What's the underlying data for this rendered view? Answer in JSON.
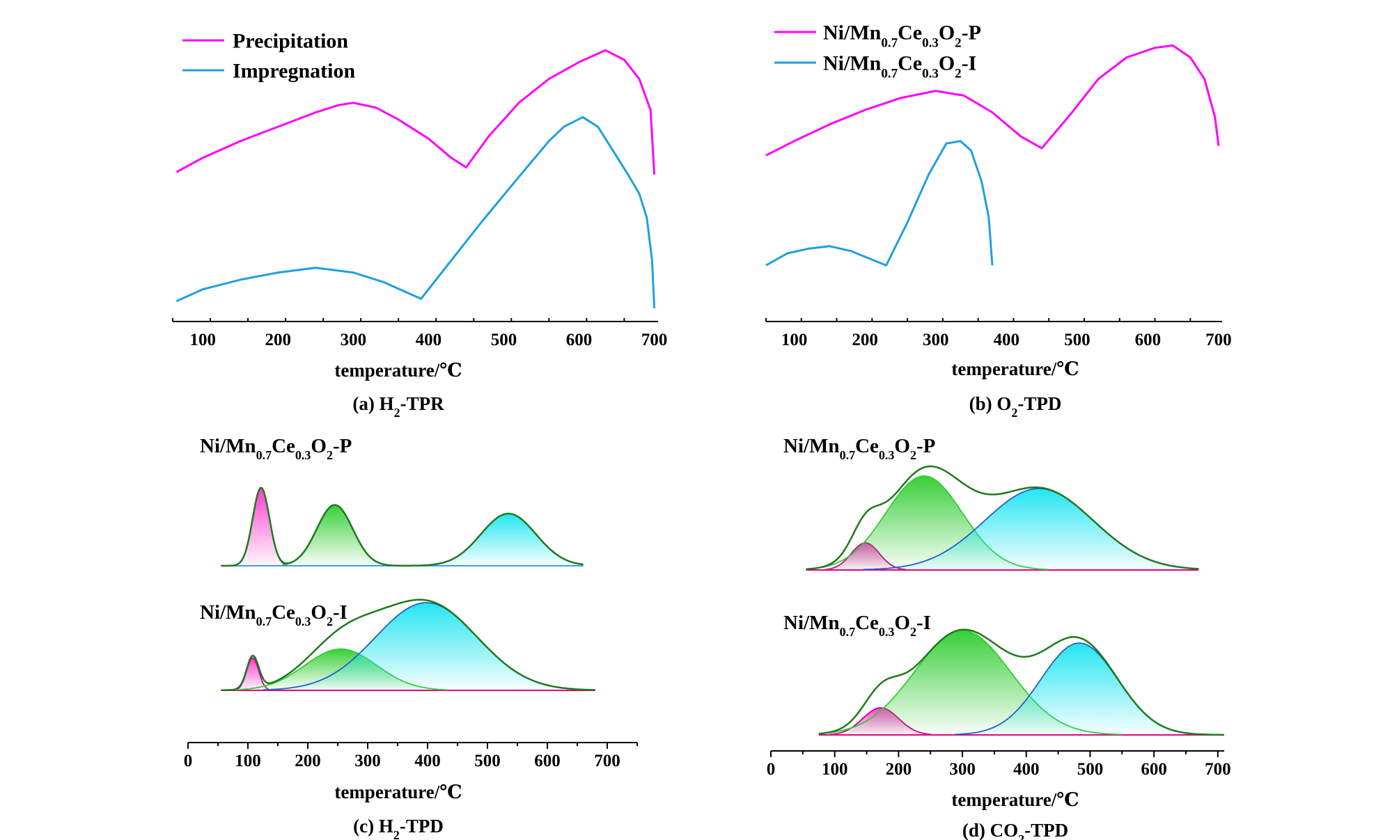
{
  "colors": {
    "magenta": "#ff00ff",
    "blue": "#1f9fe0",
    "envelope": "#1d7a1d",
    "green_peak": "#2ecc2e",
    "cyan_peak": "#18e4f2",
    "pink_peak": "#ff33cc",
    "baseline_pink": "#e6007e",
    "baseline_blue": "#3aa0e8",
    "axis": "#000000"
  },
  "chart_data": [
    {
      "id": "a",
      "type": "line",
      "caption": {
        "pre": "(a) H",
        "sub": "2",
        "post": "-TPR"
      },
      "xlabel": "temperature/℃",
      "xlim": [
        60,
        705
      ],
      "xticks": [
        100,
        200,
        300,
        400,
        500,
        600,
        700
      ],
      "legend_placement": "top-left",
      "legend": [
        {
          "label": "Precipitation",
          "color": "#ff00ff"
        },
        {
          "label": "Impregnation",
          "color": "#1f9fe0"
        }
      ],
      "series": [
        {
          "color": "#ff00ff",
          "x": [
            65,
            100,
            150,
            200,
            250,
            280,
            300,
            330,
            360,
            400,
            430,
            450,
            480,
            520,
            560,
            600,
            635,
            660,
            680,
            695,
            700
          ],
          "y": [
            0.59,
            0.65,
            0.72,
            0.78,
            0.84,
            0.87,
            0.88,
            0.86,
            0.81,
            0.73,
            0.65,
            0.61,
            0.74,
            0.88,
            0.98,
            1.05,
            1.1,
            1.06,
            0.98,
            0.85,
            0.58
          ]
        },
        {
          "color": "#1f9fe0",
          "x": [
            65,
            100,
            150,
            200,
            250,
            300,
            340,
            390,
            430,
            470,
            520,
            560,
            580,
            605,
            625,
            645,
            665,
            680,
            690,
            697,
            700
          ],
          "y": [
            0.05,
            0.1,
            0.14,
            0.17,
            0.19,
            0.17,
            0.13,
            0.06,
            0.22,
            0.38,
            0.57,
            0.72,
            0.78,
            0.82,
            0.78,
            0.68,
            0.58,
            0.5,
            0.4,
            0.22,
            0.02
          ]
        }
      ]
    },
    {
      "id": "b",
      "type": "line",
      "caption": {
        "pre": "(b) O",
        "sub": "2",
        "post": "-TPD"
      },
      "xlabel": "temperature/℃",
      "xlim": [
        60,
        705
      ],
      "xticks": [
        100,
        200,
        300,
        400,
        500,
        600,
        700
      ],
      "legend_placement": "top-left",
      "legend": [
        {
          "label": {
            "pre": "Ni/Mn",
            "s1": "0.7",
            "mid": "Ce",
            "s2": "0.3",
            "o": "O",
            "s3": "2",
            "post": "-P"
          },
          "color": "#ff00ff"
        },
        {
          "label": {
            "pre": "Ni/Mn",
            "s1": "0.7",
            "mid": "Ce",
            "s2": "0.3",
            "o": "O",
            "s3": "2",
            "post": "-I"
          },
          "color": "#1f9fe0"
        }
      ],
      "series": [
        {
          "color": "#ff00ff",
          "x": [
            60,
            100,
            150,
            200,
            250,
            300,
            340,
            380,
            420,
            450,
            490,
            530,
            570,
            610,
            635,
            660,
            680,
            695,
            700
          ],
          "y": [
            0.66,
            0.72,
            0.79,
            0.85,
            0.9,
            0.93,
            0.91,
            0.84,
            0.74,
            0.69,
            0.83,
            0.98,
            1.07,
            1.11,
            1.12,
            1.07,
            0.98,
            0.82,
            0.7
          ]
        },
        {
          "color": "#1f9fe0",
          "x": [
            60,
            90,
            120,
            150,
            180,
            205,
            230,
            260,
            290,
            315,
            335,
            350,
            365,
            375,
            380
          ],
          "y": [
            0.2,
            0.25,
            0.27,
            0.28,
            0.26,
            0.23,
            0.2,
            0.38,
            0.58,
            0.71,
            0.72,
            0.68,
            0.55,
            0.4,
            0.2
          ]
        }
      ]
    },
    {
      "id": "c",
      "type": "area",
      "caption": {
        "pre": "(c) H",
        "sub": "2",
        "post": "-TPD"
      },
      "xlabel": "temperature/℃",
      "xlim": [
        0,
        750
      ],
      "xticks": [
        0,
        100,
        200,
        300,
        400,
        500,
        600,
        700
      ],
      "panels": [
        {
          "sample": {
            "pre": "Ni/Mn",
            "s1": "0.7",
            "mid": "Ce",
            "s2": "0.3",
            "o": "O",
            "s3": "2",
            "post": "-P"
          },
          "range": [
            55,
            660
          ],
          "baseline_color": "#3aa0e8",
          "peaks": [
            {
              "center": 122,
              "amp": 0.45,
              "sigma": 14,
              "color": "#ff33cc"
            },
            {
              "center": 245,
              "amp": 0.35,
              "sigma": 30,
              "color": "#2ecc2e"
            },
            {
              "center": 535,
              "amp": 0.3,
              "sigma": 46,
              "color": "#18e4f2"
            }
          ]
        },
        {
          "sample": {
            "pre": "Ni/Mn",
            "s1": "0.7",
            "mid": "Ce",
            "s2": "0.3",
            "o": "O",
            "s3": "2",
            "post": "-I"
          },
          "range": [
            55,
            680
          ],
          "baseline_color": "#e6007e",
          "peaks": [
            {
              "center": 108,
              "amp": 0.26,
              "sigma": 10,
              "color": "#ff33cc"
            },
            {
              "center": 255,
              "amp": 0.33,
              "sigma": 60,
              "color": "#2ecc2e"
            },
            {
              "center": 398,
              "amp": 0.7,
              "sigma": 85,
              "color": "#18e4f2"
            }
          ]
        }
      ]
    },
    {
      "id": "d",
      "type": "area",
      "caption": {
        "pre": "(d) CO",
        "sub": "2",
        "post": "-TPD"
      },
      "xlabel": "temperature/℃",
      "xlim": [
        0,
        710
      ],
      "xticks": [
        0,
        100,
        200,
        300,
        400,
        500,
        600,
        700
      ],
      "panels": [
        {
          "sample": {
            "pre": "Ni/Mn",
            "s1": "0.7",
            "mid": "Ce",
            "s2": "0.3",
            "o": "O",
            "s3": "2",
            "post": "-P"
          },
          "range": [
            55,
            670
          ],
          "baseline_color": "#e6007e",
          "peaks": [
            {
              "center": 148,
              "amp": 0.26,
              "sigma": 22,
              "color": "#ff33cc"
            },
            {
              "center": 240,
              "amp": 0.9,
              "sigma": 60,
              "color": "#2ecc2e"
            },
            {
              "center": 420,
              "amp": 0.78,
              "sigma": 85,
              "color": "#18e4f2"
            }
          ]
        },
        {
          "sample": {
            "pre": "Ni/Mn",
            "s1": "0.7",
            "mid": "Ce",
            "s2": "0.3",
            "o": "O",
            "s3": "2",
            "post": "-I"
          },
          "range": [
            75,
            710
          ],
          "baseline_color": "#e6007e",
          "peaks": [
            {
              "center": 172,
              "amp": 0.26,
              "sigma": 28,
              "color": "#ff33cc"
            },
            {
              "center": 300,
              "amp": 1.0,
              "sigma": 75,
              "color": "#2ecc2e"
            },
            {
              "center": 483,
              "amp": 0.88,
              "sigma": 60,
              "color": "#18e4f2"
            }
          ]
        }
      ]
    }
  ]
}
